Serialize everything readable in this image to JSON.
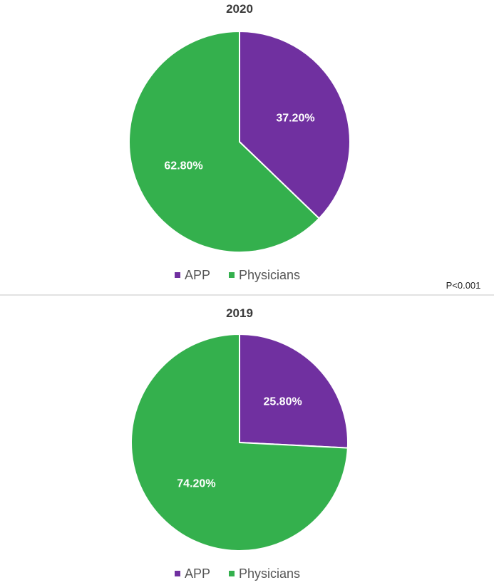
{
  "colors": {
    "app": "#7030a0",
    "physicians": "#34b04d"
  },
  "note": "P<0.001",
  "chart_data": [
    {
      "type": "pie",
      "title": "2020",
      "categories": [
        "APP",
        "Physicians"
      ],
      "values": [
        37.2,
        62.8
      ],
      "labels": [
        "37.20%",
        "62.80%"
      ],
      "legend": [
        "APP",
        "Physicians"
      ],
      "legend_position": "bottom"
    },
    {
      "type": "pie",
      "title": "2019",
      "categories": [
        "APP",
        "Physicians"
      ],
      "values": [
        25.8,
        74.2
      ],
      "labels": [
        "25.80%",
        "74.20%"
      ],
      "legend": [
        "APP",
        "Physicians"
      ],
      "legend_position": "bottom"
    }
  ]
}
